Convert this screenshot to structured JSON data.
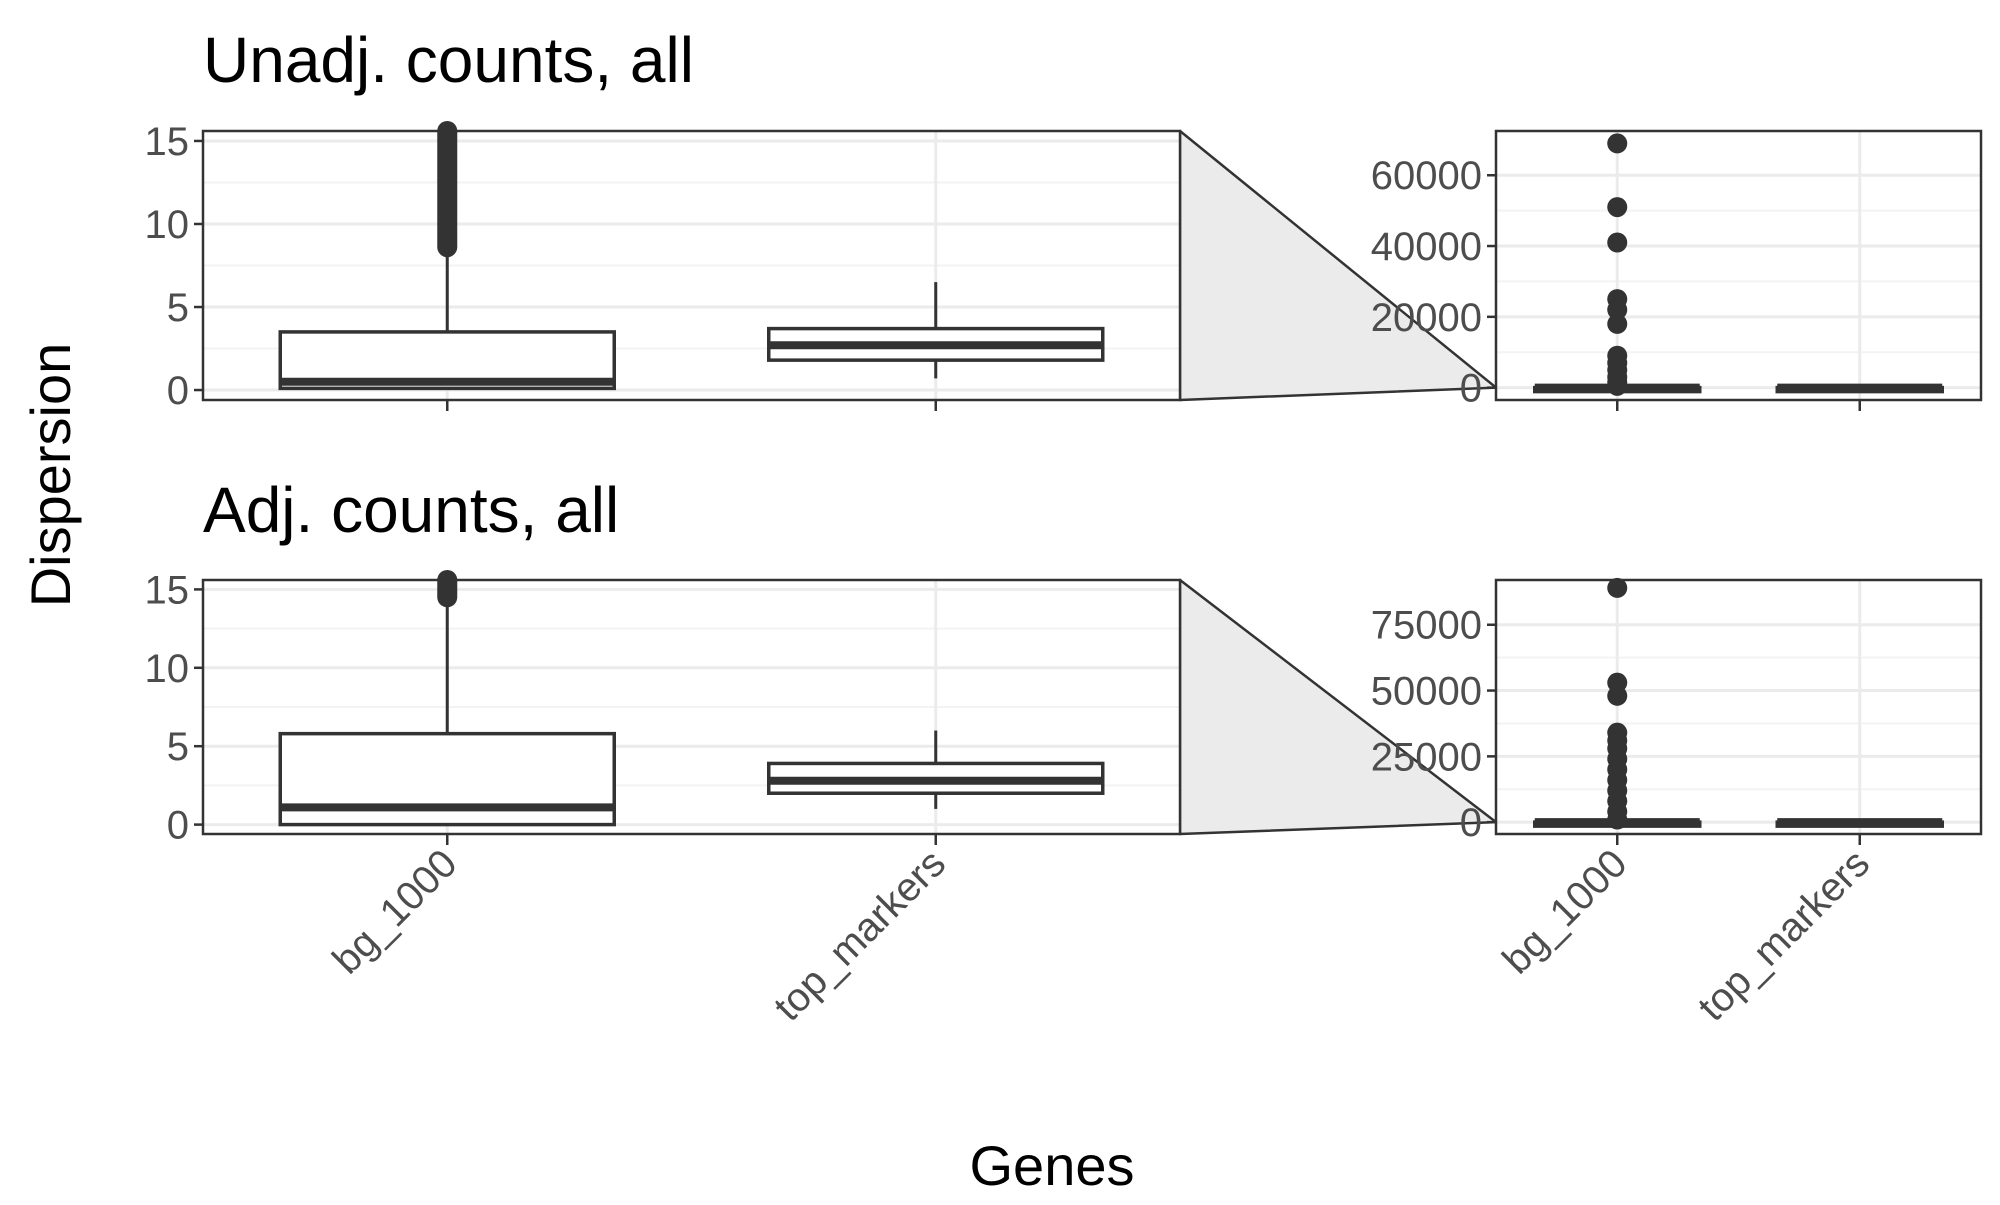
{
  "colors": {
    "grid_major": "#ebebeb",
    "grid_minor": "#f3f3f3",
    "box_stroke": "#333333",
    "outlier": "#333333",
    "panel_border": "#333333",
    "zoom_fill": "#ebebeb",
    "tick_text": "#4d4d4d"
  },
  "chart_data": {
    "type": "box",
    "xlabel": "Genes",
    "ylabel": "Dispersion",
    "categories": [
      "bg_1000",
      "top_markers"
    ],
    "zoom_y_range": [
      0,
      15
    ],
    "rows": [
      {
        "title": "Unadj. counts, all",
        "zoom": {
          "ylim": [
            -0.6,
            15.6
          ],
          "yticks": [
            0,
            5,
            10,
            15
          ],
          "boxes": [
            {
              "category": "bg_1000",
              "q1": 0.1,
              "median": 0.5,
              "q3": 3.5,
              "whisker_low": 0,
              "whisker_high": 8.6,
              "outliers_from": 8.6,
              "outliers_to": 15.6
            },
            {
              "category": "top_markers",
              "q1": 1.8,
              "median": 2.7,
              "q3": 3.7,
              "whisker_low": 0.7,
              "whisker_high": 6.5
            }
          ]
        },
        "full": {
          "ylim": [
            -3500,
            72500
          ],
          "yticks": [
            0,
            20000,
            40000,
            60000
          ],
          "boxes": [
            {
              "category": "bg_1000",
              "q1": 0.1,
              "median": 0.5,
              "q3": 3.5,
              "whisker_low": 0,
              "whisker_high": 8.6,
              "outliers": [
                69000,
                51000,
                41000,
                25000,
                22000,
                18000,
                9000,
                7000,
                5000,
                3000,
                1500,
                500
              ]
            },
            {
              "category": "top_markers",
              "q1": 1.8,
              "median": 2.7,
              "q3": 3.7,
              "whisker_low": 0.7,
              "whisker_high": 6.5
            }
          ]
        }
      },
      {
        "title": "Adj. counts, all",
        "zoom": {
          "ylim": [
            -0.6,
            15.6
          ],
          "yticks": [
            0,
            5,
            10,
            15
          ],
          "boxes": [
            {
              "category": "bg_1000",
              "q1": 0,
              "median": 1.1,
              "q3": 5.8,
              "whisker_low": 0,
              "whisker_high": 14.5,
              "outliers_from": 14.5,
              "outliers_to": 15.6
            },
            {
              "category": "top_markers",
              "q1": 2.0,
              "median": 2.8,
              "q3": 3.9,
              "whisker_low": 1.0,
              "whisker_high": 6.0
            }
          ]
        },
        "full": {
          "ylim": [
            -4500,
            92000
          ],
          "yticks": [
            0,
            25000,
            50000,
            75000
          ],
          "boxes": [
            {
              "category": "bg_1000",
              "q1": 0,
              "median": 1.1,
              "q3": 5.8,
              "whisker_low": 0,
              "whisker_high": 14.5,
              "outliers": [
                89000,
                53000,
                48000,
                34000,
                31000,
                28000,
                24000,
                20000,
                16000,
                12000,
                8000,
                4000,
                1000
              ]
            },
            {
              "category": "top_markers",
              "q1": 2.0,
              "median": 2.8,
              "q3": 3.9,
              "whisker_low": 1.0,
              "whisker_high": 6.0
            }
          ]
        }
      }
    ]
  }
}
